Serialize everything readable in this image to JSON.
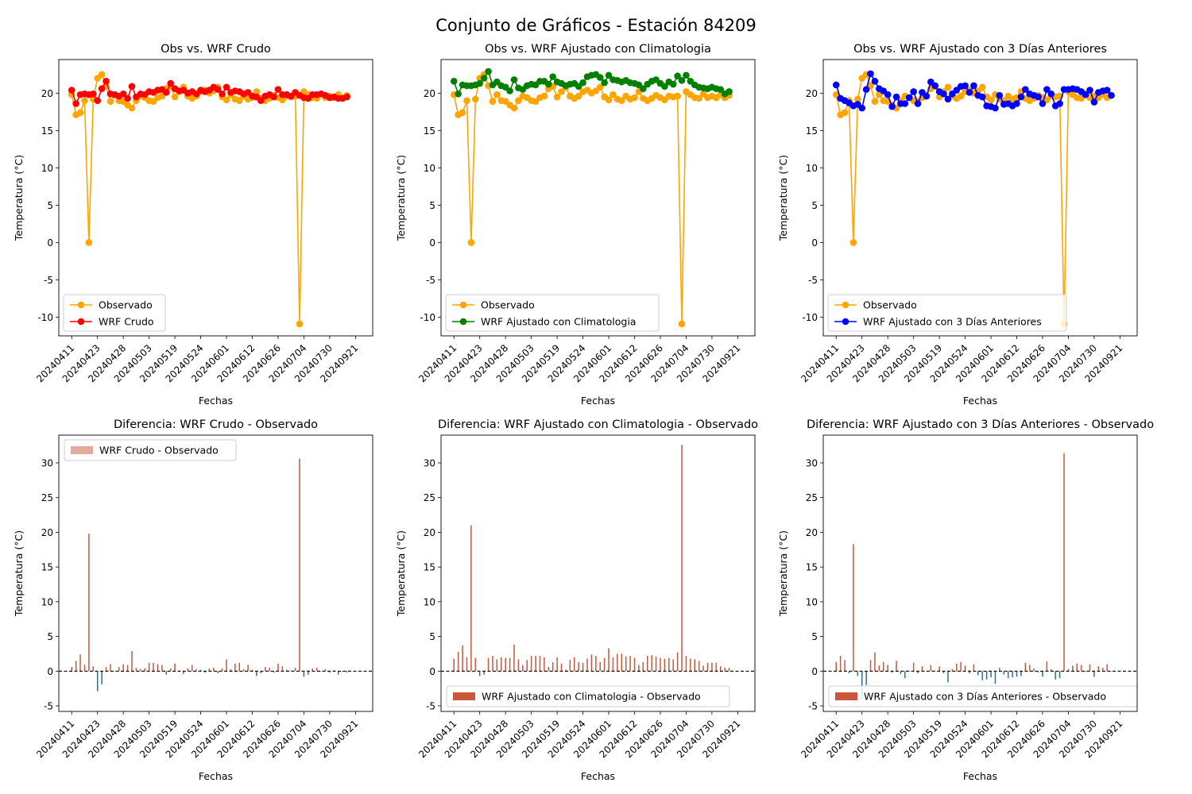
{
  "figure": {
    "title": "Conjunto de Gráficos - Estación 84209"
  },
  "colors": {
    "observed": "#ffa500",
    "raw": "#ff0000",
    "clim": "#008000",
    "prev3": "#0000ff",
    "diff_pos": "#c9573b",
    "diff_neg": "#2f6e86",
    "legend_raw_patch": "#e1aa9c",
    "zero_line": "#000000"
  },
  "chart_data": [
    {
      "type": "line",
      "title": "Obs vs. WRF Crudo",
      "xlabel": "Fechas",
      "ylabel": "Temperatura (°C)",
      "ylim": [
        -12.5,
        24.5
      ],
      "yticks": [
        -10,
        -5,
        0,
        5,
        10,
        15,
        20
      ],
      "xlim": [
        -3,
        70
      ],
      "xtick_positions": [
        0,
        6,
        12,
        18,
        24,
        30,
        36,
        42,
        48,
        54,
        60,
        66
      ],
      "xtick_labels": [
        "20240411",
        "20240423",
        "20240428",
        "20240503",
        "20240519",
        "20240524",
        "20240601",
        "20240612",
        "20240626",
        "20240704",
        "20240730",
        "20240921"
      ],
      "legend": "lower-left",
      "series": [
        {
          "name": "Observado",
          "color_key": "observed",
          "values": [
            19.8,
            17.1,
            17.4,
            19.0,
            0.0,
            19.2,
            22.0,
            22.5,
            21.0,
            18.9,
            19.8,
            19.0,
            18.9,
            18.4,
            18.0,
            19.0,
            19.6,
            19.4,
            19.0,
            18.9,
            19.4,
            19.6,
            20.6,
            20.9,
            19.5,
            20.2,
            20.8,
            19.6,
            19.3,
            19.6,
            20.2,
            20.4,
            20.0,
            20.3,
            20.8,
            19.5,
            19.1,
            19.8,
            19.2,
            19.0,
            19.6,
            19.2,
            19.4,
            20.2,
            19.3,
            19.0,
            19.3,
            19.7,
            19.4,
            19.1,
            19.6,
            19.5,
            19.6,
            -10.9,
            20.2,
            19.8,
            19.4,
            19.3,
            19.9,
            19.4,
            19.6,
            19.4,
            19.8,
            19.4,
            19.7
          ]
        },
        {
          "name": "WRF Crudo",
          "color_key": "raw",
          "values": [
            20.4,
            18.6,
            19.8,
            19.9,
            19.8,
            19.9,
            19.0,
            20.6,
            21.6,
            19.9,
            19.8,
            19.6,
            19.9,
            19.3,
            20.9,
            19.5,
            19.9,
            19.8,
            20.2,
            20.1,
            20.4,
            20.5,
            20.1,
            21.3,
            20.6,
            20.3,
            20.4,
            20.0,
            20.2,
            19.9,
            20.4,
            20.2,
            20.4,
            20.8,
            20.5,
            19.9,
            20.8,
            20.1,
            20.3,
            20.2,
            19.9,
            20.1,
            19.6,
            19.5,
            19.0,
            19.6,
            19.8,
            19.5,
            20.5,
            19.8,
            19.8,
            19.6,
            20.1,
            19.7,
            19.4,
            19.3,
            19.8,
            19.8,
            19.9,
            19.7,
            19.4,
            19.5,
            19.3,
            19.3,
            19.5
          ]
        }
      ]
    },
    {
      "type": "line",
      "title": "Obs vs. WRF Ajustado con Climatologia",
      "xlabel": "Fechas",
      "ylabel": "Temperatura (°C)",
      "ylim": [
        -12.5,
        24.5
      ],
      "yticks": [
        -10,
        -5,
        0,
        5,
        10,
        15,
        20
      ],
      "xlim": [
        -3,
        70
      ],
      "xtick_positions": [
        0,
        6,
        12,
        18,
        24,
        30,
        36,
        42,
        48,
        54,
        60,
        66
      ],
      "xtick_labels": [
        "20240411",
        "20240423",
        "20240428",
        "20240503",
        "20240519",
        "20240524",
        "20240601",
        "20240612",
        "20240626",
        "20240704",
        "20240730",
        "20240921"
      ],
      "legend": "lower-left",
      "series": [
        {
          "name": "Observado",
          "color_key": "observed",
          "values": [
            19.8,
            17.1,
            17.4,
            19.0,
            0.0,
            19.2,
            22.0,
            22.5,
            21.0,
            18.9,
            19.8,
            19.0,
            18.9,
            18.4,
            18.0,
            19.0,
            19.6,
            19.4,
            19.0,
            18.9,
            19.4,
            19.6,
            20.6,
            20.9,
            19.5,
            20.2,
            20.8,
            19.6,
            19.3,
            19.6,
            20.2,
            20.4,
            20.0,
            20.3,
            20.8,
            19.5,
            19.1,
            19.8,
            19.2,
            19.0,
            19.6,
            19.2,
            19.4,
            20.2,
            19.3,
            19.0,
            19.3,
            19.7,
            19.4,
            19.1,
            19.6,
            19.5,
            19.6,
            -10.9,
            20.2,
            19.8,
            19.4,
            19.3,
            19.9,
            19.4,
            19.6,
            19.4,
            19.8,
            19.4,
            19.7
          ]
        },
        {
          "name": "WRF Ajustado con Climatologia",
          "color_key": "clim",
          "values": [
            21.6,
            19.9,
            21.1,
            21.0,
            21.0,
            21.1,
            21.3,
            22.0,
            22.9,
            21.1,
            21.5,
            21.0,
            20.8,
            20.3,
            21.8,
            20.7,
            20.5,
            21.0,
            21.2,
            21.1,
            21.6,
            21.6,
            21.2,
            22.2,
            21.5,
            21.3,
            21.0,
            21.2,
            21.3,
            20.9,
            21.4,
            22.2,
            22.4,
            22.5,
            22.1,
            21.4,
            22.4,
            21.8,
            21.7,
            21.5,
            21.7,
            21.4,
            21.3,
            21.1,
            20.6,
            21.2,
            21.6,
            21.8,
            21.3,
            20.9,
            21.5,
            21.2,
            22.3,
            21.7,
            22.4,
            21.6,
            21.1,
            20.8,
            20.7,
            20.6,
            20.8,
            20.6,
            20.5,
            19.9,
            20.2
          ]
        }
      ]
    },
    {
      "type": "line",
      "title": "Obs vs. WRF Ajustado con 3 Días Anteriores",
      "xlabel": "Fechas",
      "ylabel": "Temperatura (°C)",
      "ylim": [
        -12.5,
        24.5
      ],
      "yticks": [
        -10,
        -5,
        0,
        5,
        10,
        15,
        20
      ],
      "xlim": [
        -3,
        70
      ],
      "xtick_positions": [
        0,
        6,
        12,
        18,
        24,
        30,
        36,
        42,
        48,
        54,
        60,
        66
      ],
      "xtick_labels": [
        "20240411",
        "20240423",
        "20240428",
        "20240503",
        "20240519",
        "20240524",
        "20240601",
        "20240612",
        "20240626",
        "20240704",
        "20240730",
        "20240921"
      ],
      "legend": "lower-left",
      "series": [
        {
          "name": "Observado",
          "color_key": "observed",
          "values": [
            19.8,
            17.1,
            17.4,
            19.0,
            0.0,
            19.2,
            22.0,
            22.5,
            21.0,
            18.9,
            19.8,
            19.0,
            18.9,
            18.4,
            18.0,
            19.0,
            19.6,
            19.4,
            19.0,
            18.9,
            19.4,
            19.6,
            20.6,
            20.9,
            19.5,
            20.2,
            20.8,
            19.6,
            19.3,
            19.6,
            20.2,
            20.4,
            20.0,
            20.3,
            20.8,
            19.5,
            19.1,
            19.8,
            19.2,
            19.0,
            19.6,
            19.2,
            19.4,
            20.2,
            19.3,
            19.0,
            19.3,
            19.7,
            19.4,
            19.1,
            19.6,
            19.5,
            19.6,
            -10.9,
            20.2,
            19.8,
            19.4,
            19.3,
            19.9,
            19.4,
            19.6,
            19.4,
            19.8,
            19.4,
            19.7
          ]
        },
        {
          "name": "WRF Ajustado con 3 Días Anteriores",
          "color_key": "prev3",
          "values": [
            21.1,
            19.3,
            19.0,
            18.7,
            18.3,
            18.5,
            18.0,
            20.5,
            22.6,
            21.6,
            20.6,
            20.3,
            19.8,
            18.2,
            19.5,
            18.6,
            18.6,
            19.4,
            20.2,
            18.6,
            20.1,
            19.6,
            21.5,
            21.0,
            20.2,
            19.9,
            19.2,
            19.9,
            20.4,
            20.9,
            21.0,
            20.1,
            21.0,
            19.7,
            19.5,
            18.3,
            18.2,
            18.0,
            19.7,
            18.5,
            18.6,
            18.3,
            18.6,
            19.5,
            20.5,
            19.9,
            19.7,
            19.5,
            18.6,
            20.5,
            19.9,
            18.3,
            18.6,
            20.5,
            20.5,
            20.6,
            20.5,
            20.2,
            19.8,
            20.4,
            18.8,
            20.1,
            20.3,
            20.4,
            19.7
          ]
        }
      ]
    },
    {
      "type": "bar",
      "title": "Diferencia: WRF Crudo - Observado",
      "xlabel": "Fechas",
      "ylabel": "Temperatura (°C)",
      "ylim": [
        -5.8,
        34.0
      ],
      "yticks": [
        -5,
        0,
        5,
        10,
        15,
        20,
        25,
        30
      ],
      "xlim": [
        -3,
        70
      ],
      "xtick_positions": [
        0,
        6,
        12,
        18,
        24,
        30,
        36,
        42,
        48,
        54,
        60,
        66
      ],
      "xtick_labels": [
        "20240411",
        "20240423",
        "20240428",
        "20240503",
        "20240519",
        "20240524",
        "20240601",
        "20240612",
        "20240626",
        "20240704",
        "20240730",
        "20240921"
      ],
      "legend": "top-left",
      "legend_label": "WRF Crudo - Observado",
      "legend_patch_key": "legend_raw_patch",
      "values": [
        0.6,
        1.5,
        2.4,
        0.9,
        19.8,
        0.7,
        -2.9,
        -1.9,
        0.6,
        1.0,
        0.0,
        0.6,
        1.0,
        0.9,
        2.9,
        0.5,
        0.3,
        0.4,
        1.2,
        1.2,
        1.0,
        0.9,
        -0.5,
        0.4,
        1.1,
        0.1,
        -0.4,
        0.4,
        0.9,
        0.3,
        0.2,
        -0.2,
        0.4,
        0.5,
        -0.3,
        0.4,
        1.7,
        0.3,
        1.1,
        1.2,
        0.3,
        0.9,
        0.2,
        -0.7,
        -0.3,
        0.6,
        0.5,
        -0.2,
        1.1,
        0.7,
        0.2,
        0.1,
        0.5,
        30.6,
        -0.8,
        -0.5,
        0.4,
        0.5,
        0.0,
        0.3,
        -0.2,
        0.1,
        -0.5,
        -0.1,
        -0.2
      ]
    },
    {
      "type": "bar",
      "title": "Diferencia: WRF Ajustado con Climatologia - Observado",
      "xlabel": "Fechas",
      "ylabel": "Temperatura (°C)",
      "ylim": [
        -5.8,
        34.0
      ],
      "yticks": [
        -5,
        0,
        5,
        10,
        15,
        20,
        25,
        30
      ],
      "xlim": [
        -3,
        70
      ],
      "xtick_positions": [
        0,
        6,
        12,
        18,
        24,
        30,
        36,
        42,
        48,
        54,
        60,
        66
      ],
      "xtick_labels": [
        "20240411",
        "20240423",
        "20240428",
        "20240503",
        "20240519",
        "20240524",
        "20240601",
        "20240612",
        "20240626",
        "20240704",
        "20240730",
        "20240921"
      ],
      "legend": "lower-left",
      "legend_label": "WRF Ajustado con Climatologia - Observado",
      "legend_patch_key": "diff_pos",
      "values": [
        1.8,
        2.8,
        3.7,
        2.0,
        21.0,
        1.9,
        -0.7,
        -0.5,
        1.9,
        2.2,
        1.7,
        2.0,
        1.9,
        1.9,
        3.8,
        1.7,
        0.9,
        1.6,
        2.2,
        2.2,
        2.2,
        2.0,
        0.6,
        1.3,
        2.0,
        1.1,
        0.2,
        1.6,
        2.0,
        1.3,
        1.2,
        1.8,
        2.4,
        2.2,
        1.3,
        1.9,
        3.3,
        2.0,
        2.5,
        2.5,
        2.1,
        2.2,
        1.9,
        0.9,
        1.3,
        2.2,
        2.3,
        2.1,
        1.9,
        1.8,
        1.9,
        1.7,
        2.7,
        32.6,
        2.2,
        1.8,
        1.7,
        1.5,
        0.8,
        1.2,
        1.2,
        1.2,
        0.7,
        0.5,
        0.5
      ]
    },
    {
      "type": "bar",
      "title": "Diferencia: WRF Ajustado con 3 Días Anteriores - Observado",
      "xlabel": "Fechas",
      "ylabel": "Temperatura (°C)",
      "ylim": [
        -5.8,
        34.0
      ],
      "yticks": [
        -5,
        0,
        5,
        10,
        15,
        20,
        25,
        30
      ],
      "xlim": [
        -3,
        70
      ],
      "xtick_positions": [
        0,
        6,
        12,
        18,
        24,
        30,
        36,
        42,
        48,
        54,
        60,
        66
      ],
      "xtick_labels": [
        "20240411",
        "20240423",
        "20240428",
        "20240503",
        "20240519",
        "20240524",
        "20240601",
        "20240612",
        "20240626",
        "20240704",
        "20240730",
        "20240921"
      ],
      "legend": "lower-left",
      "legend_label": "WRF Ajustado con 3 Días Anteriores - Observado",
      "legend_patch_key": "diff_pos",
      "values": [
        1.3,
        2.2,
        1.6,
        -0.3,
        18.3,
        -0.7,
        -4.0,
        -2.0,
        1.6,
        2.7,
        0.8,
        1.3,
        0.9,
        -0.2,
        1.5,
        -0.4,
        -1.0,
        0.0,
        1.2,
        -0.3,
        0.7,
        0.0,
        0.9,
        0.1,
        0.7,
        -0.3,
        -1.6,
        0.3,
        1.1,
        1.3,
        0.8,
        -0.3,
        1.0,
        -0.6,
        -1.3,
        -1.2,
        -0.9,
        -1.8,
        0.5,
        -0.5,
        -1.0,
        -0.9,
        -0.8,
        -0.7,
        1.2,
        0.9,
        0.4,
        -0.2,
        -0.8,
        1.4,
        0.3,
        -1.2,
        -1.0,
        31.4,
        0.3,
        0.8,
        1.1,
        0.9,
        -0.1,
        1.0,
        -0.8,
        0.7,
        0.5,
        1.0,
        0.0
      ]
    }
  ]
}
